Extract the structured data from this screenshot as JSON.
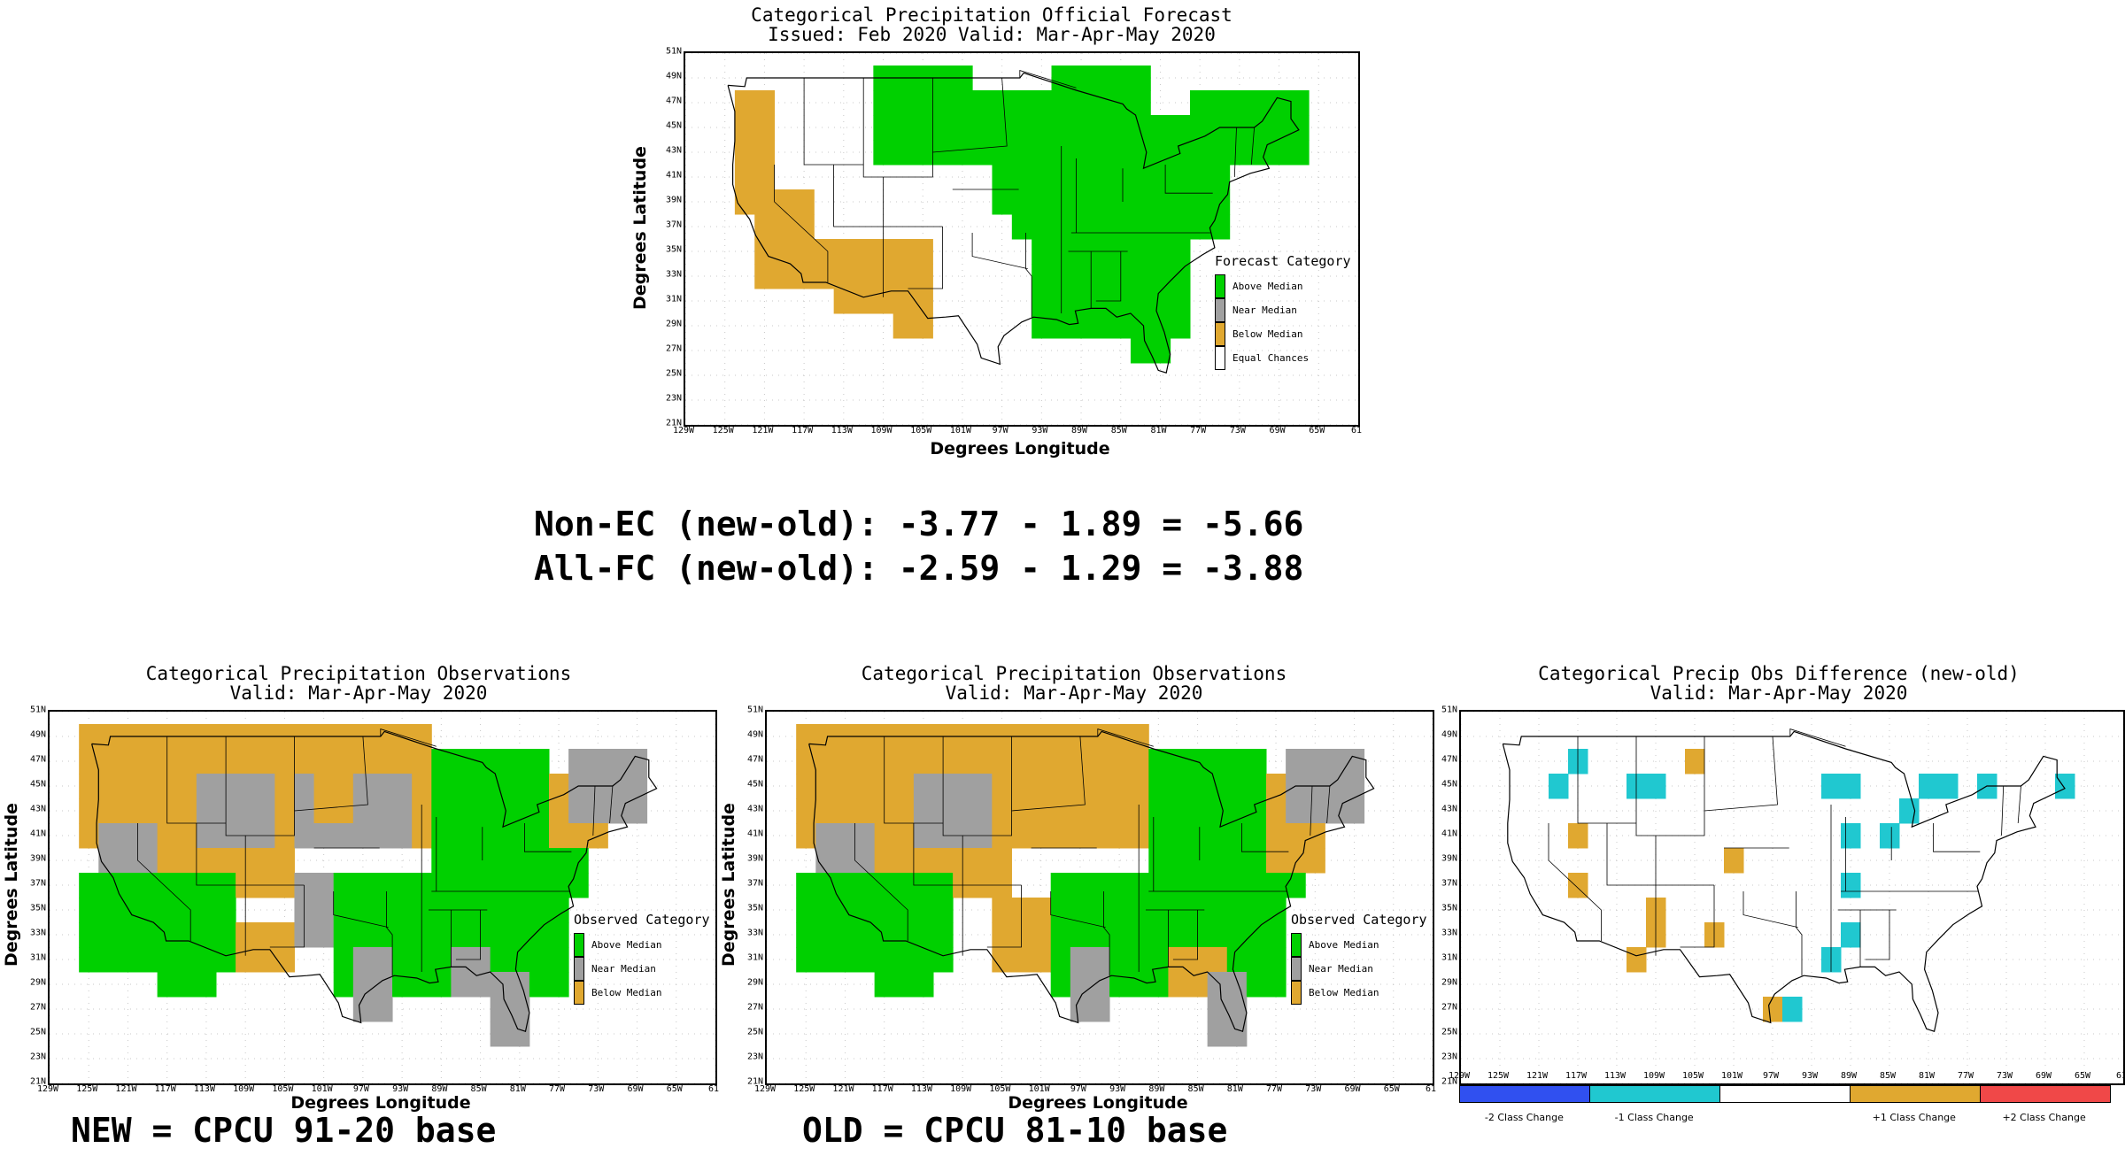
{
  "colors": {
    "above": "#00d000",
    "near": "#a0a0a0",
    "below": "#e0a830",
    "equal": "#ffffff",
    "minus2": "#3050f0",
    "minus1": "#20c8d0",
    "zero": "#ffffff",
    "plus1": "#e0a830",
    "plus2": "#f04848"
  },
  "forecast": {
    "title1": "Categorical Precipitation Official Forecast",
    "title2": "Issued: Feb 2020 Valid: Mar-Apr-May 2020",
    "ylabel": "Degrees Latitude",
    "xlabel": "Degrees Longitude",
    "legend_title": "Forecast Category",
    "legend": [
      "Above Median",
      "Near Median",
      "Below Median",
      "Equal Chances"
    ]
  },
  "stats": {
    "line1": "Non-EC (new-old): -3.77 - 1.89 = -5.66",
    "line2": "All-FC (new-old): -2.59 - 1.29 = -3.88"
  },
  "obs_new": {
    "title1": "Categorical Precipitation Observations",
    "title2": "Valid: Mar-Apr-May 2020",
    "ylabel": "Degrees Latitude",
    "xlabel": "Degrees Longitude",
    "legend_title": "Observed Category",
    "legend": [
      "Above Median",
      "Near Median",
      "Below Median"
    ],
    "caption": "NEW = CPCU 91-20 base"
  },
  "obs_old": {
    "title1": "Categorical Precipitation Observations",
    "title2": "Valid: Mar-Apr-May 2020",
    "ylabel": "Degrees Latitude",
    "xlabel": "Degrees Longitude",
    "legend_title": "Observed Category",
    "legend": [
      "Above Median",
      "Near Median",
      "Below Median"
    ],
    "caption": "OLD = CPCU 81-10 base"
  },
  "diff": {
    "title1": "Categorical Precip Obs Difference (new-old)",
    "title2": "Valid: Mar-Apr-May 2020",
    "colorbar_labels": [
      "-2 Class Change",
      "-1 Class Change",
      "+1 Class Change",
      "+2 Class Change"
    ]
  },
  "lat_ticks": [
    "51N",
    "49N",
    "47N",
    "45N",
    "43N",
    "41N",
    "39N",
    "37N",
    "35N",
    "33N",
    "31N",
    "29N",
    "27N",
    "25N",
    "23N",
    "21N"
  ],
  "lon_ticks": [
    "129W",
    "125W",
    "121W",
    "117W",
    "113W",
    "109W",
    "105W",
    "101W",
    "97W",
    "93W",
    "89W",
    "85W",
    "81W",
    "77W",
    "73W",
    "69W",
    "65W",
    "61"
  ]
}
